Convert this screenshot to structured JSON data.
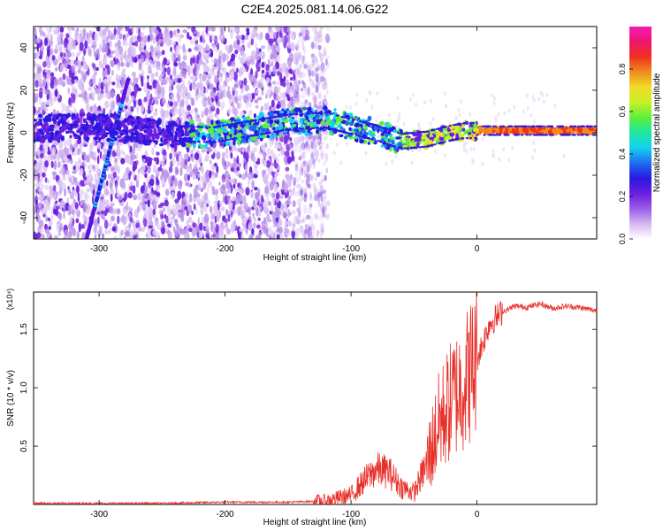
{
  "title": "C2E4.2025.081.14.06.G22",
  "colors": {
    "snr_line": "#e8302a",
    "colormap": [
      "#ffffff",
      "#d6b8f0",
      "#9a5ce6",
      "#6a1ee0",
      "#2a18e0",
      "#1e6cf0",
      "#14d2f0",
      "#1ee6a0",
      "#5af03c",
      "#c8f028",
      "#f0dc28",
      "#f08c1e",
      "#f0321e",
      "#f0146e",
      "#f01eb4"
    ]
  },
  "chart_data": [
    {
      "type": "heatmap",
      "xlabel": "Height of straight line (km)",
      "ylabel": "Frequency (Hz)",
      "xlim": [
        -352,
        95
      ],
      "ylim": [
        -50,
        50
      ],
      "xticks": [
        -300,
        -200,
        -100,
        0
      ],
      "yticks": [
        -40,
        -20,
        0,
        20,
        40
      ],
      "colorbar": {
        "label": "Normalized spectral amplitude",
        "range": [
          0,
          1
        ],
        "ticks": [
          "0.0",
          "0.2",
          "0.4",
          "0.6",
          "0.8"
        ]
      },
      "features": {
        "diagonal_track": {
          "x": [
            -310,
            -277
          ],
          "y": [
            -50,
            25
          ]
        },
        "main_trace": {
          "x": [
            -352,
            -300,
            -250,
            -210,
            -180,
            -150,
            -120,
            -100,
            -80,
            -60,
            -40,
            -20,
            -10,
            0,
            20,
            40,
            60,
            80,
            95
          ],
          "y": [
            2,
            3,
            0,
            -1,
            2,
            5,
            6,
            3,
            0,
            -4,
            -3,
            0,
            1,
            1,
            1,
            1,
            1,
            1,
            1
          ]
        },
        "noise_extent_x": [
          -352,
          -130
        ]
      }
    },
    {
      "type": "line",
      "xlabel": "Height of straight line (km)",
      "ylabel": "SNR (10 * v/v)",
      "yscale_label": "(x10⁴)",
      "xlim": [
        -352,
        95
      ],
      "ylim": [
        0,
        1.82
      ],
      "xticks": [
        -300,
        -200,
        -100,
        0
      ],
      "yticks": [
        0.5,
        1.0,
        1.5
      ],
      "ytick_labels": [
        "0.5",
        "1.0",
        "1.5"
      ],
      "series": [
        {
          "x": [
            -352,
            -300,
            -250,
            -200,
            -150,
            -120,
            -100,
            -90,
            -80,
            -70,
            -60,
            -50,
            -40,
            -30,
            -20,
            -10,
            0,
            10,
            20,
            30,
            40,
            50,
            60,
            70,
            80,
            95
          ],
          "y": [
            0.01,
            0.01,
            0.01,
            0.02,
            0.02,
            0.03,
            0.08,
            0.2,
            0.3,
            0.28,
            0.15,
            0.1,
            0.35,
            0.7,
            0.9,
            1.05,
            1.25,
            1.55,
            1.65,
            1.7,
            1.69,
            1.72,
            1.68,
            1.7,
            1.69,
            1.66
          ]
        }
      ]
    }
  ]
}
